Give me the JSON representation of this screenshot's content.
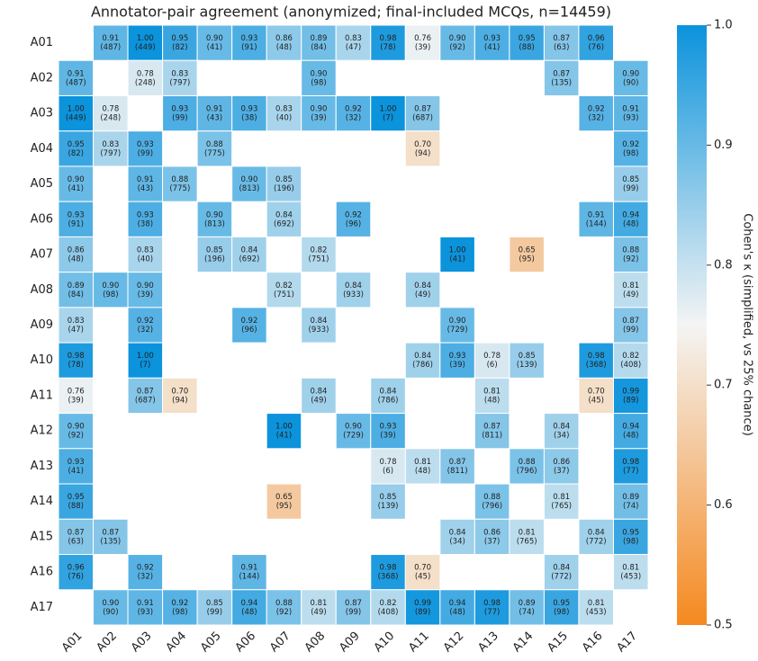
{
  "chart_data": {
    "type": "heatmap",
    "title": "Annotator-pair agreement (anonymized; final-included MCQs, n=14459)",
    "colorbar_label": "Cohen's κ (simplified, vs 25% chance)",
    "categories": [
      "A01",
      "A02",
      "A03",
      "A04",
      "A05",
      "A06",
      "A07",
      "A08",
      "A09",
      "A10",
      "A11",
      "A12",
      "A13",
      "A14",
      "A15",
      "A16",
      "A17"
    ],
    "row_categories": [
      "A01",
      "A02",
      "A03",
      "A04",
      "A05",
      "A06",
      "A07",
      "A08",
      "A09",
      "A10",
      "A11",
      "A12",
      "A13",
      "A14",
      "A15",
      "A16",
      "A17"
    ],
    "clim": [
      0.5,
      1
    ],
    "colormap": [
      "#f5891f",
      "#f4f4f4",
      "#0b93dc"
    ],
    "cticks": [
      0.5,
      0.6,
      0.7,
      0.8,
      0.9,
      {
        "value": 1,
        "label": "1.0"
      }
    ],
    "values": [
      [
        null,
        0.91,
        1,
        0.95,
        0.9,
        0.93,
        0.86,
        0.89,
        0.83,
        0.98,
        0.76,
        0.9,
        0.93,
        0.95,
        0.87,
        0.96,
        null
      ],
      [
        0.91,
        null,
        0.78,
        0.83,
        null,
        null,
        null,
        0.9,
        null,
        null,
        null,
        null,
        null,
        null,
        0.87,
        null,
        0.9
      ],
      [
        1,
        0.78,
        null,
        0.93,
        0.91,
        0.93,
        0.83,
        0.9,
        0.92,
        1,
        0.87,
        null,
        null,
        null,
        null,
        0.92,
        0.91
      ],
      [
        0.95,
        0.83,
        0.93,
        null,
        0.88,
        null,
        null,
        null,
        null,
        null,
        0.7,
        null,
        null,
        null,
        null,
        null,
        0.92
      ],
      [
        0.9,
        null,
        0.91,
        0.88,
        null,
        0.9,
        0.85,
        null,
        null,
        null,
        null,
        null,
        null,
        null,
        null,
        null,
        0.85
      ],
      [
        0.93,
        null,
        0.93,
        null,
        0.9,
        null,
        0.84,
        null,
        0.92,
        null,
        null,
        null,
        null,
        null,
        null,
        0.91,
        0.94
      ],
      [
        0.86,
        null,
        0.83,
        null,
        0.85,
        0.84,
        null,
        0.82,
        null,
        null,
        null,
        1,
        null,
        0.65,
        null,
        null,
        0.88
      ],
      [
        0.89,
        0.9,
        0.9,
        null,
        null,
        null,
        0.82,
        null,
        0.84,
        null,
        0.84,
        null,
        null,
        null,
        null,
        null,
        0.81
      ],
      [
        0.83,
        null,
        0.92,
        null,
        null,
        0.92,
        null,
        0.84,
        null,
        null,
        null,
        0.9,
        null,
        null,
        null,
        null,
        0.87
      ],
      [
        0.98,
        null,
        1,
        null,
        null,
        null,
        null,
        null,
        null,
        null,
        0.84,
        0.93,
        0.78,
        0.85,
        null,
        0.98,
        0.82
      ],
      [
        0.76,
        null,
        0.87,
        0.7,
        null,
        null,
        null,
        0.84,
        null,
        0.84,
        null,
        null,
        0.81,
        null,
        null,
        0.7,
        0.99
      ],
      [
        0.9,
        null,
        null,
        null,
        null,
        null,
        1,
        null,
        0.9,
        0.93,
        null,
        null,
        0.87,
        null,
        0.84,
        null,
        0.94
      ],
      [
        0.93,
        null,
        null,
        null,
        null,
        null,
        null,
        null,
        null,
        0.78,
        0.81,
        0.87,
        null,
        0.88,
        0.86,
        null,
        0.98
      ],
      [
        0.95,
        null,
        null,
        null,
        null,
        null,
        0.65,
        null,
        null,
        0.85,
        null,
        null,
        0.88,
        null,
        0.81,
        null,
        0.89
      ],
      [
        0.87,
        0.87,
        null,
        null,
        null,
        null,
        null,
        null,
        null,
        null,
        null,
        0.84,
        0.86,
        0.81,
        null,
        0.84,
        0.95
      ],
      [
        0.96,
        null,
        0.92,
        null,
        null,
        0.91,
        null,
        null,
        null,
        0.98,
        0.7,
        null,
        null,
        null,
        0.84,
        null,
        0.81
      ],
      [
        null,
        0.9,
        0.91,
        0.92,
        0.85,
        0.94,
        0.88,
        0.81,
        0.87,
        0.82,
        0.99,
        0.94,
        0.98,
        0.89,
        0.95,
        0.81,
        null
      ]
    ],
    "value_labels": [
      [
        null,
        "0.91",
        "1.00",
        "0.95",
        "0.90",
        "0.93",
        "0.86",
        "0.89",
        "0.83",
        "0.98",
        "0.76",
        "0.90",
        "0.93",
        "0.95",
        "0.87",
        "0.96",
        null
      ],
      [
        "0.91",
        null,
        "0.78",
        "0.83",
        null,
        null,
        null,
        "0.90",
        null,
        null,
        null,
        null,
        null,
        null,
        "0.87",
        null,
        "0.90"
      ],
      [
        "1.00",
        "0.78",
        null,
        "0.93",
        "0.91",
        "0.93",
        "0.83",
        "0.90",
        "0.92",
        "1.00",
        "0.87",
        null,
        null,
        null,
        null,
        "0.92",
        "0.91"
      ],
      [
        "0.95",
        "0.83",
        "0.93",
        null,
        "0.88",
        null,
        null,
        null,
        null,
        null,
        "0.70",
        null,
        null,
        null,
        null,
        null,
        "0.92"
      ],
      [
        "0.90",
        null,
        "0.91",
        "0.88",
        null,
        "0.90",
        "0.85",
        null,
        null,
        null,
        null,
        null,
        null,
        null,
        null,
        null,
        "0.85"
      ],
      [
        "0.93",
        null,
        "0.93",
        null,
        "0.90",
        null,
        "0.84",
        null,
        "0.92",
        null,
        null,
        null,
        null,
        null,
        null,
        "0.91",
        "0.94"
      ],
      [
        "0.86",
        null,
        "0.83",
        null,
        "0.85",
        "0.84",
        null,
        "0.82",
        null,
        null,
        null,
        "1.00",
        null,
        "0.65",
        null,
        null,
        "0.88"
      ],
      [
        "0.89",
        "0.90",
        "0.90",
        null,
        null,
        null,
        "0.82",
        null,
        "0.84",
        null,
        "0.84",
        null,
        null,
        null,
        null,
        null,
        "0.81"
      ],
      [
        "0.83",
        null,
        "0.92",
        null,
        null,
        "0.92",
        null,
        "0.84",
        null,
        null,
        null,
        "0.90",
        null,
        null,
        null,
        null,
        "0.87"
      ],
      [
        "0.98",
        null,
        "1.00",
        null,
        null,
        null,
        null,
        null,
        null,
        null,
        "0.84",
        "0.93",
        "0.78",
        "0.85",
        null,
        "0.98",
        "0.82"
      ],
      [
        "0.76",
        null,
        "0.87",
        "0.70",
        null,
        null,
        null,
        "0.84",
        null,
        "0.84",
        null,
        null,
        "0.81",
        null,
        null,
        "0.70",
        "0.99"
      ],
      [
        "0.90",
        null,
        null,
        null,
        null,
        null,
        "1.00",
        null,
        "0.90",
        "0.93",
        null,
        null,
        "0.87",
        null,
        "0.84",
        null,
        "0.94"
      ],
      [
        "0.93",
        null,
        null,
        null,
        null,
        null,
        null,
        null,
        null,
        "0.78",
        "0.81",
        "0.87",
        null,
        "0.88",
        "0.86",
        null,
        "0.98"
      ],
      [
        "0.95",
        null,
        null,
        null,
        null,
        null,
        "0.65",
        null,
        null,
        "0.85",
        null,
        null,
        "0.88",
        null,
        "0.81",
        null,
        "0.89"
      ],
      [
        "0.87",
        "0.87",
        null,
        null,
        null,
        null,
        null,
        null,
        null,
        null,
        null,
        "0.84",
        "0.86",
        "0.81",
        null,
        "0.84",
        "0.95"
      ],
      [
        "0.96",
        null,
        "0.92",
        null,
        null,
        "0.91",
        null,
        null,
        null,
        "0.98",
        "0.70",
        null,
        null,
        null,
        "0.84",
        null,
        "0.81"
      ],
      [
        null,
        "0.90",
        "0.91",
        "0.92",
        "0.85",
        "0.94",
        "0.88",
        "0.81",
        "0.87",
        "0.82",
        "0.99",
        "0.94",
        "0.98",
        "0.89",
        "0.95",
        "0.81",
        null
      ]
    ],
    "counts": [
      [
        null,
        487,
        449,
        82,
        41,
        91,
        48,
        84,
        47,
        78,
        39,
        92,
        41,
        88,
        63,
        76,
        null
      ],
      [
        487,
        null,
        248,
        797,
        null,
        null,
        null,
        98,
        null,
        null,
        null,
        null,
        null,
        null,
        135,
        null,
        90
      ],
      [
        449,
        248,
        null,
        99,
        43,
        38,
        40,
        39,
        32,
        7,
        687,
        null,
        null,
        null,
        null,
        32,
        93
      ],
      [
        82,
        797,
        99,
        null,
        775,
        null,
        null,
        null,
        null,
        null,
        94,
        null,
        null,
        null,
        null,
        null,
        98
      ],
      [
        41,
        null,
        43,
        775,
        null,
        813,
        196,
        null,
        null,
        null,
        null,
        null,
        null,
        null,
        null,
        null,
        99
      ],
      [
        91,
        null,
        38,
        null,
        813,
        null,
        692,
        null,
        96,
        null,
        null,
        null,
        null,
        null,
        null,
        144,
        48
      ],
      [
        48,
        null,
        40,
        null,
        196,
        692,
        null,
        751,
        null,
        null,
        null,
        41,
        null,
        95,
        null,
        null,
        92
      ],
      [
        84,
        98,
        39,
        null,
        null,
        null,
        751,
        null,
        933,
        null,
        49,
        null,
        null,
        null,
        null,
        null,
        49
      ],
      [
        47,
        null,
        32,
        null,
        null,
        96,
        null,
        933,
        null,
        null,
        null,
        729,
        null,
        null,
        null,
        null,
        99
      ],
      [
        78,
        null,
        7,
        null,
        null,
        null,
        null,
        null,
        null,
        null,
        786,
        39,
        6,
        139,
        null,
        368,
        408
      ],
      [
        39,
        null,
        687,
        94,
        null,
        null,
        null,
        49,
        null,
        786,
        null,
        null,
        48,
        null,
        null,
        45,
        89
      ],
      [
        92,
        null,
        null,
        null,
        null,
        null,
        41,
        null,
        729,
        39,
        null,
        null,
        811,
        null,
        34,
        null,
        48
      ],
      [
        41,
        null,
        null,
        null,
        null,
        null,
        null,
        null,
        null,
        6,
        48,
        811,
        null,
        796,
        37,
        null,
        77
      ],
      [
        88,
        null,
        null,
        null,
        null,
        null,
        95,
        null,
        null,
        139,
        null,
        null,
        796,
        null,
        765,
        null,
        74
      ],
      [
        63,
        135,
        null,
        null,
        null,
        null,
        null,
        null,
        null,
        null,
        null,
        34,
        37,
        765,
        null,
        772,
        98
      ],
      [
        76,
        null,
        32,
        null,
        null,
        144,
        null,
        null,
        null,
        368,
        45,
        null,
        null,
        null,
        772,
        null,
        453
      ],
      [
        null,
        90,
        93,
        98,
        99,
        48,
        92,
        49,
        99,
        408,
        89,
        48,
        77,
        74,
        98,
        453,
        null
      ]
    ],
    "count_labels": [
      [
        null,
        "(487)",
        "(449)",
        "(82)",
        "(41)",
        "(91)",
        "(48)",
        "(84)",
        "(47)",
        "(78)",
        "(39)",
        "(92)",
        "(41)",
        "(88)",
        "(63)",
        "(76)",
        null
      ],
      [
        "(487)",
        null,
        "(248)",
        "(797)",
        null,
        null,
        null,
        "(98)",
        null,
        null,
        null,
        null,
        null,
        null,
        "(135)",
        null,
        "(90)"
      ],
      [
        "(449)",
        "(248)",
        null,
        "(99)",
        "(43)",
        "(38)",
        "(40)",
        "(39)",
        "(32)",
        "(7)",
        "(687)",
        null,
        null,
        null,
        null,
        "(32)",
        "(93)"
      ],
      [
        "(82)",
        "(797)",
        "(99)",
        null,
        "(775)",
        null,
        null,
        null,
        null,
        null,
        "(94)",
        null,
        null,
        null,
        null,
        null,
        "(98)"
      ],
      [
        "(41)",
        null,
        "(43)",
        "(775)",
        null,
        "(813)",
        "(196)",
        null,
        null,
        null,
        null,
        null,
        null,
        null,
        null,
        null,
        "(99)"
      ],
      [
        "(91)",
        null,
        "(38)",
        null,
        "(813)",
        null,
        "(692)",
        null,
        "(96)",
        null,
        null,
        null,
        null,
        null,
        null,
        "(144)",
        "(48)"
      ],
      [
        "(48)",
        null,
        "(40)",
        null,
        "(196)",
        "(692)",
        null,
        "(751)",
        null,
        null,
        null,
        "(41)",
        null,
        "(95)",
        null,
        null,
        "(92)"
      ],
      [
        "(84)",
        "(98)",
        "(39)",
        null,
        null,
        null,
        "(751)",
        null,
        "(933)",
        null,
        "(49)",
        null,
        null,
        null,
        null,
        null,
        "(49)"
      ],
      [
        "(47)",
        null,
        "(32)",
        null,
        null,
        "(96)",
        null,
        "(933)",
        null,
        null,
        null,
        "(729)",
        null,
        null,
        null,
        null,
        "(99)"
      ],
      [
        "(78)",
        null,
        "(7)",
        null,
        null,
        null,
        null,
        null,
        null,
        null,
        "(786)",
        "(39)",
        "(6)",
        "(139)",
        null,
        "(368)",
        "(408)"
      ],
      [
        "(39)",
        null,
        "(687)",
        "(94)",
        null,
        null,
        null,
        "(49)",
        null,
        "(786)",
        null,
        null,
        "(48)",
        null,
        null,
        "(45)",
        "(89)"
      ],
      [
        "(92)",
        null,
        null,
        null,
        null,
        null,
        "(41)",
        null,
        "(729)",
        "(39)",
        null,
        null,
        "(811)",
        null,
        "(34)",
        null,
        "(48)"
      ],
      [
        "(41)",
        null,
        null,
        null,
        null,
        null,
        null,
        null,
        null,
        "(6)",
        "(48)",
        "(811)",
        null,
        "(796)",
        "(37)",
        null,
        "(77)"
      ],
      [
        "(88)",
        null,
        null,
        null,
        null,
        null,
        "(95)",
        null,
        null,
        "(139)",
        null,
        null,
        "(796)",
        null,
        "(765)",
        null,
        "(74)"
      ],
      [
        "(63)",
        "(135)",
        null,
        null,
        null,
        null,
        null,
        null,
        null,
        null,
        null,
        "(34)",
        "(37)",
        "(765)",
        null,
        "(772)",
        "(98)"
      ],
      [
        "(76)",
        null,
        "(32)",
        null,
        null,
        "(144)",
        null,
        null,
        null,
        "(368)",
        "(45)",
        null,
        null,
        null,
        "(772)",
        null,
        "(453)"
      ],
      [
        null,
        "(90)",
        "(93)",
        "(98)",
        "(99)",
        "(48)",
        "(92)",
        "(49)",
        "(99)",
        "(408)",
        "(89)",
        "(48)",
        "(77)",
        "(74)",
        "(98)",
        "(453)",
        null
      ]
    ]
  }
}
